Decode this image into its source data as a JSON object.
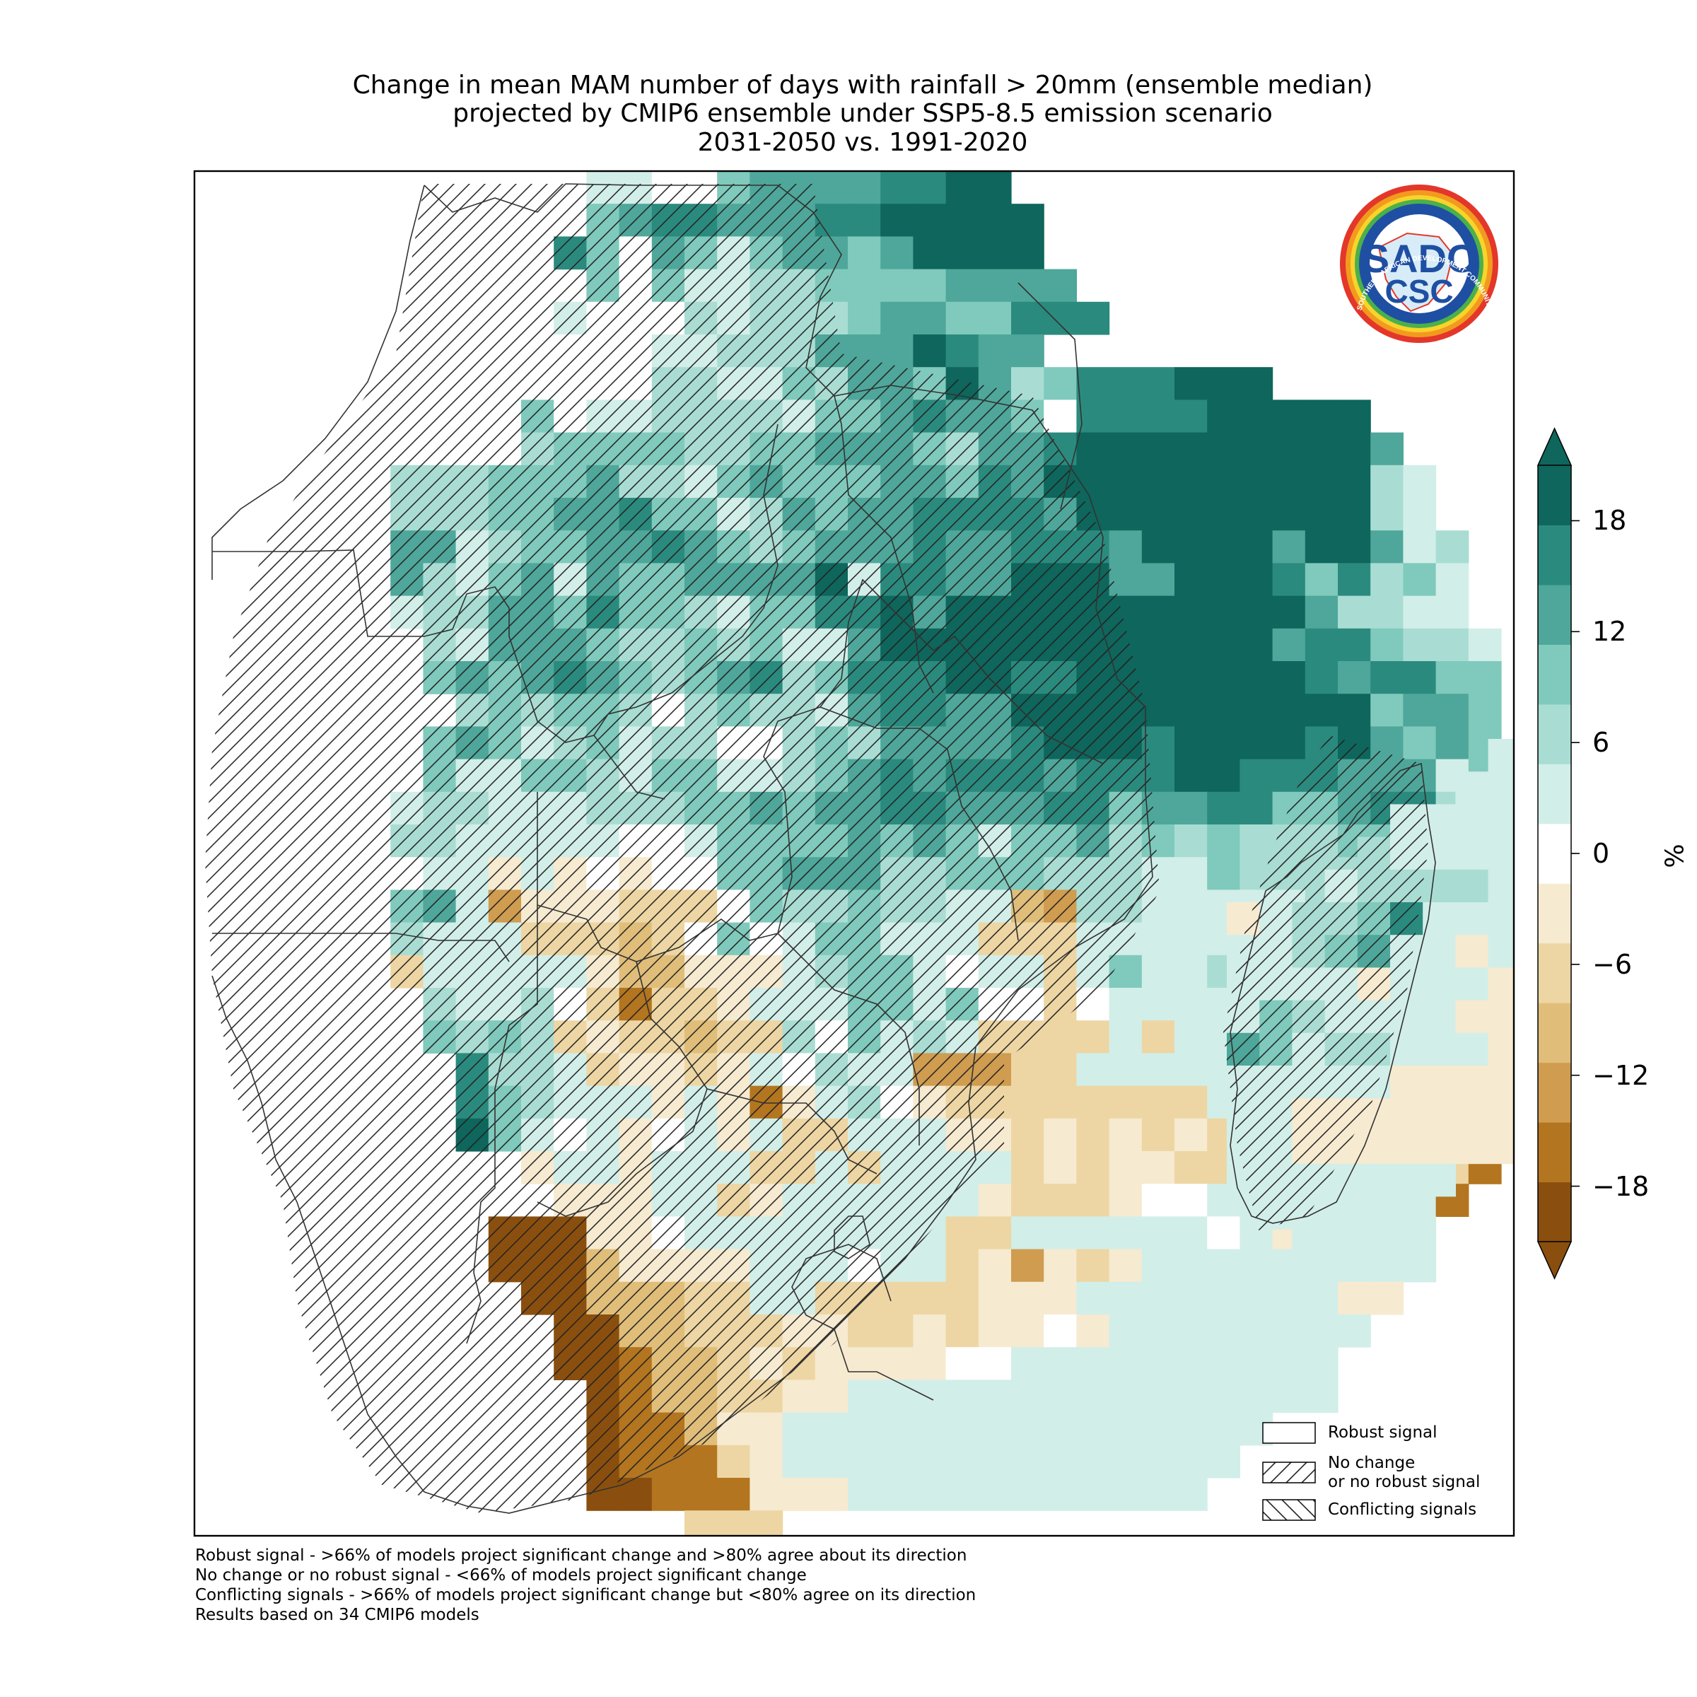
{
  "title": {
    "line1": "Change in mean MAM number of days with rainfall > 20mm (ensemble median)",
    "line2": "projected by CMIP6 ensemble under SSP5-8.5 emission scenario",
    "line3": "2031-2050 vs. 1991-2020"
  },
  "colorbar": {
    "unit": "%",
    "tick_labels": [
      "18",
      "12",
      "6",
      "0",
      "−6",
      "−12",
      "−18"
    ],
    "tick_values": [
      18,
      12,
      6,
      0,
      -6,
      -12,
      -18
    ],
    "range": [
      -21,
      21
    ],
    "colors": [
      "#8a4f0e",
      "#b3751f",
      "#cf9c50",
      "#e0be7a",
      "#edd6a3",
      "#f6ead0",
      "#ffffff",
      "#d2eee9",
      "#a9ddd3",
      "#7fcabc",
      "#4ea79a",
      "#2b8a7e",
      "#0e665c"
    ]
  },
  "legend": {
    "items": [
      {
        "label": "Robust signal",
        "pattern": "none"
      },
      {
        "label": "No change",
        "label2": "or no robust signal",
        "pattern": "forward-hatch"
      },
      {
        "label": "Conflicting signals",
        "pattern": "back-hatch"
      }
    ]
  },
  "notes": [
    "Robust signal - >66% of models project significant change and >80% agree about its direction",
    "No change or no robust signal - <66% of models project significant change",
    "Conflicting signals - >66% of models project significant change but <80% agree on its direction",
    "Results based on 34 CMIP6 models"
  ],
  "logo": {
    "text_main": "SADC",
    "text_sub": "CSC",
    "ring_text_top": "SOUTHERN AFRICAN DEVELOPMENT COMMUNITY",
    "ring_text_bottom": "CLIMATE SERVICES CENTRE"
  },
  "map_data": {
    "grid_columns": 40,
    "grid_rows": 42,
    "value_unit": "%",
    "palette_letters": "A=#0e665c B=#2b8a7e C=#4ea79a D=#7fcabc E=#a9ddd3 F=#d2eee9 W=#ffffff u=#f6ead0 v=#edd6a3 w=#e0be7a x=#cf9c50 y=#b3751f z=#8a4f0e",
    "rows": [
      "............FFW.DCCCCBBAA...............",
      "............DCBBCCCBBAAAAA..............",
      "...........BDWCDFDCCDCAAAA..............",
      "............DWDFFEEDDDDCCCC.............",
      "...........FWWWEFEEEDCCDDBBB............",
      "...........WWWFFEEECCCABCC..............",
      "............WWEEFFDECCDACEDBBBAAA.......",
      "..........DWFFEEEEFDDCBCCDWBBBBAAAAA....",
      "..........EDDDDEEDDCCCDECCBAAAAAAAAAC...",
      "......EEEDDDCEEFDCDDDCCDBCAAAAAAAAAAEF..",
      "......EEEDDCCBDDFECDCCBBBBCAAAAAAAAAEF..",
      "......CCFEDDCCBCDEDCCCBCCBBBCAAAACAACFE.",
      "......CEFDCFCDDCCCCAFBBCCAAACCAAABDBEDF.",
      "......FEECCDBDDEFDDBBACAAAAAAAAAAACEEFF.",
      ".......EFCCCDEEDEDFFCAAAAAAAAAAAACBBDEEF",
      ".......DCDCBCDEDCBEDBBBAABBAAAAAAABCBBDD",
      "........EDEDDEWEDEEFCBBCCAAAAAAAAAAADCCD",
      ".......DCDFEDFEEWWEDECCCCBAAABAAAABACDCD",
      ".......DFFDDEFDDFFEDCBCBBBCBBBAABBBCCCFD",
      "......FEEFFFEEEDDCDCCBBCCCBBDCCBBDDCBBED",
      "......EEFFFFFWWFDDDDCDCDFDDCEDEDEEEDDDFF",
      "......WFFuFuWuWWDDCCCEEDDDEEEFFDEEEEEEFE",
      "......DCFxuuuvvvWDEEDEEFFwxEEFFFFFEEEFFF",
      "......EFFFvvvwvWDWFDDFFFvvvFFFFFFDEFFFF.",
      "......vFFFFFuwwuuuFEDDFWFFvFDFFEDFFF....",
      ".......EFFEWvyvvuFFFDDFDWWvWFFFFFEF.....",
      ".......DEDEvuvvwvvEWDFEFvvvvFvFFFFFF....",
      "........BEEFvuuvuFWEFFxxxvvFFFFFEFFFuu..",
      "........BDEFFFuFuyuFEWuvvvvvvvvFFFFvvvv.",
      "........ADFWFuWFuFvvFFFuuvuvuvuvvvuxyxvw",
      "..........uFFuFFFvvFvFFFFvuvuuvvuFxvxuvy",
      "...........uuuFFvuFFFFFFuvvvuWWFFFFFFFy.",
      ".........zzzuuWFFFFFFFFvvFFFFFFWFuuFFF..",
      ".........zzzwuuuuFFFWFFvuxuvuFFFFFFFFF..",
      "..........zzwwwvvFFvvvvvuuuFFFFFFFFuu...",
      "...........zzwwvvvuuvvuvuuWuFFFFFFFF....",
      "...........zzywwvuvuuuuWWFFFFFFFFFF.....",
      "............zywwvvuuFFFFFFFFFFFFFFF.....",
      "............zyywuuFFFFFFFFFFFFFFF.......",
      "............zyyyvuFFFFFFFFFFFFFF........",
      "............zzyyyuuuFFFFFFFFFFF.........",
      "...............vvv......................"
    ],
    "madagascar_rows": [
      "........FEE.",
      ".......FFFFF",
      ".....FFFFFF.",
      "....EFFFFFF.",
      "...FEEEEFuF.",
      "uFEEDBFFFFFF",
      "FFEDCFFuFFFF",
      "FFFFuFFFuuu.",
      "FDEFFFFuuu..",
      "CDFEEFFFu...",
      "FFFFFuuuu...",
      "FFuuuuuuu...",
      "FFuuuuuuu...",
      "FFFFFFF.....",
      ".FFFFF......",
      "..FF........"
    ]
  }
}
